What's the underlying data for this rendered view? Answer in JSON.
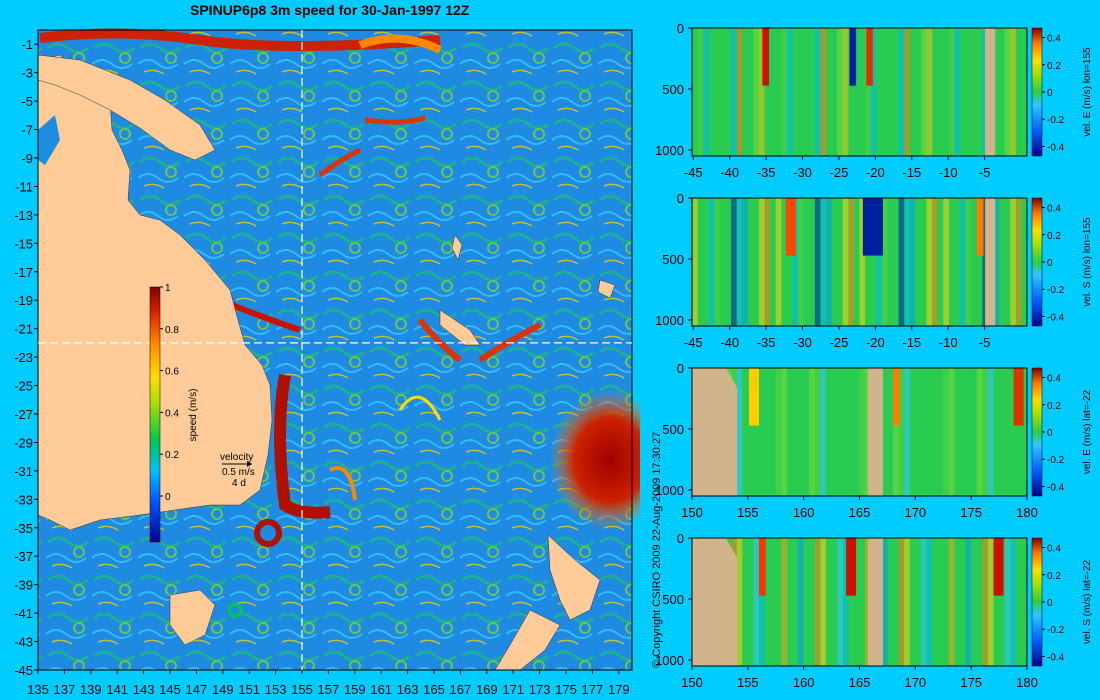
{
  "title": "SPINUP6p8 3m speed for 30-Jan-1997 12Z",
  "copyright": "© Copyright CSIRO 2009   22-Aug-2009 17:30:27",
  "colors": {
    "background": "#00ccff",
    "land": "#ffcc99",
    "seafloor": "#d2b48c",
    "crosshair": "#ffffff"
  },
  "map": {
    "lon_ticks": [
      "135",
      "137",
      "139",
      "141",
      "143",
      "145",
      "147",
      "149",
      "151",
      "153",
      "155",
      "157",
      "159",
      "161",
      "163",
      "165",
      "167",
      "169",
      "171",
      "173",
      "175",
      "177",
      "179"
    ],
    "lat_ticks": [
      "-1",
      "-3",
      "-5",
      "-7",
      "-9",
      "-11",
      "-13",
      "-15",
      "-17",
      "-19",
      "-21",
      "-23",
      "-25",
      "-27",
      "-29",
      "-31",
      "-33",
      "-35",
      "-37",
      "-39",
      "-41",
      "-43",
      "-45"
    ],
    "lon_range": [
      135,
      180
    ],
    "lat_range": [
      -45,
      0
    ],
    "crosshair": {
      "lon": 155,
      "lat": -22
    },
    "colorbar": {
      "label": "speed (m/s)",
      "ticks": [
        "1",
        "0.8",
        "0.6",
        "0.4",
        "0.2",
        "0"
      ]
    },
    "velocity_key": {
      "line1": "velocity",
      "line2": "0.5 m/s",
      "line3": "4 d"
    }
  },
  "panels": [
    {
      "label": "vel. E (m/s) lon=155",
      "x_ticks": [
        "-45",
        "-40",
        "-35",
        "-30",
        "-25",
        "-20",
        "-15",
        "-10",
        "-5"
      ],
      "y_ticks": [
        "0",
        "500",
        "1000"
      ],
      "cb_ticks": [
        "0.4",
        "0.2",
        "0",
        "-0.2",
        "-0.4"
      ]
    },
    {
      "label": "vel. S (m/s) lon=155",
      "x_ticks": [
        "-45",
        "-40",
        "-35",
        "-30",
        "-25",
        "-20",
        "-15",
        "-10",
        "-5"
      ],
      "y_ticks": [
        "0",
        "500",
        "1000"
      ],
      "cb_ticks": [
        "0.4",
        "0.2",
        "0",
        "-0.2",
        "-0.4"
      ]
    },
    {
      "label": "vel. E (m/s) lat=-22",
      "x_ticks": [
        "150",
        "155",
        "160",
        "165",
        "170",
        "175",
        "180"
      ],
      "y_ticks": [
        "0",
        "500",
        "1000"
      ],
      "cb_ticks": [
        "0.4",
        "0.2",
        "0",
        "-0.2",
        "-0.4"
      ]
    },
    {
      "label": "vel. S (m/s) lat=-22",
      "x_ticks": [
        "150",
        "155",
        "160",
        "165",
        "170",
        "175",
        "180"
      ],
      "y_ticks": [
        "0",
        "500",
        "1000"
      ],
      "cb_ticks": [
        "0.4",
        "0.2",
        "0",
        "-0.2",
        "-0.4"
      ]
    }
  ]
}
